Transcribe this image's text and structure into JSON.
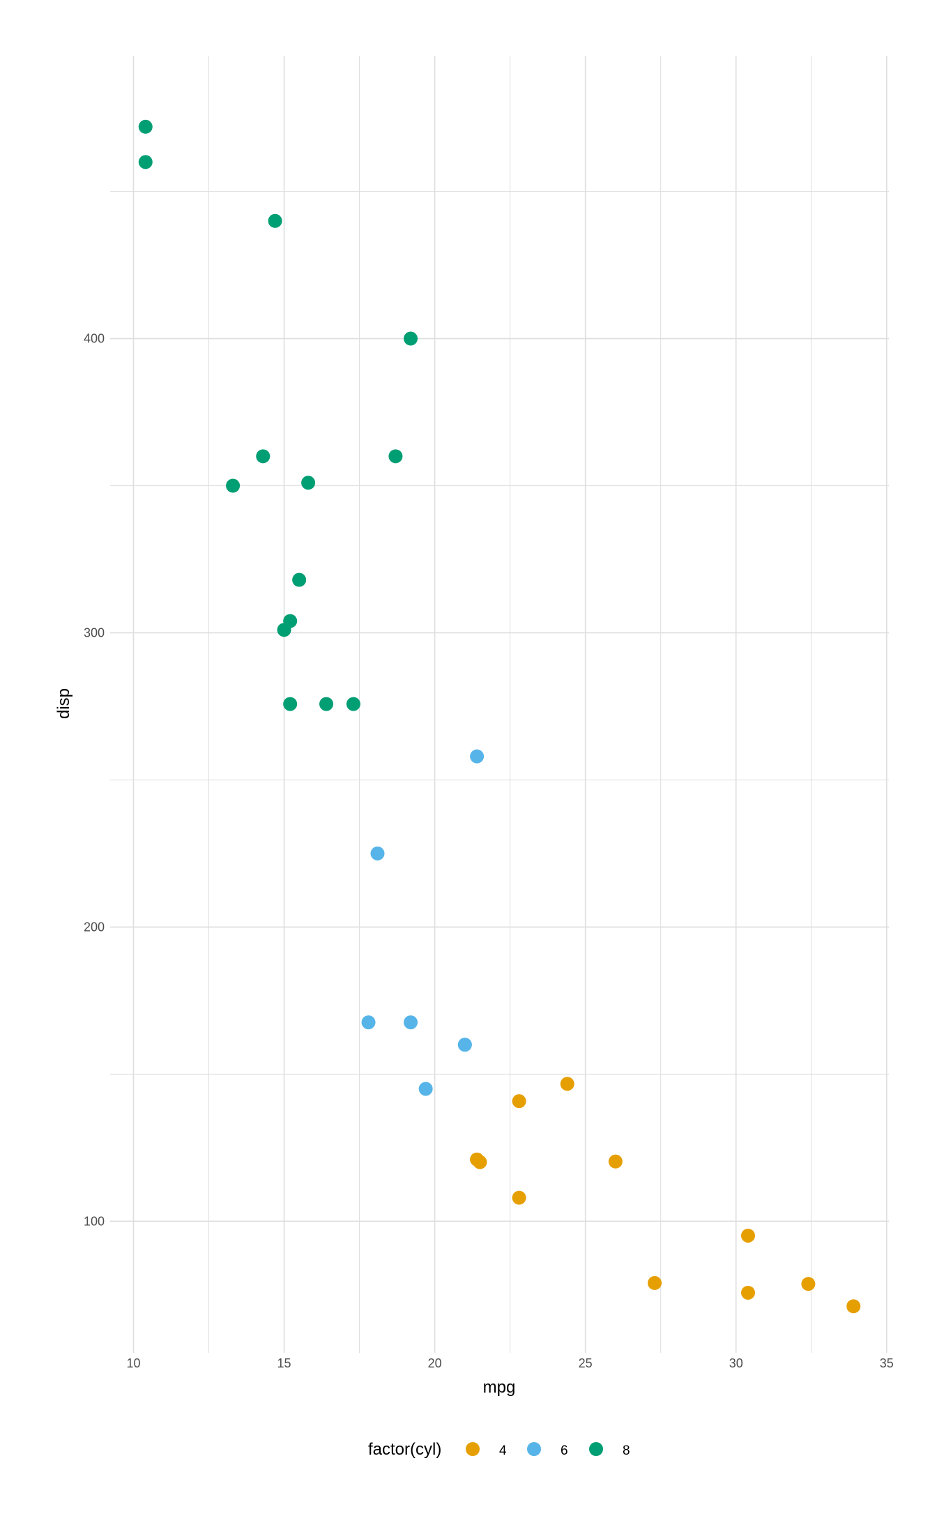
{
  "chart_data": {
    "type": "scatter",
    "xlabel": "mpg",
    "ylabel": "disp",
    "xlim": [
      9.225,
      35.075
    ],
    "ylim": [
      55.28,
      496.12
    ],
    "x_ticks": [
      10,
      15,
      20,
      25,
      30,
      35
    ],
    "x_tick_labels": [
      "10",
      "15",
      "20",
      "25",
      "30",
      "35"
    ],
    "y_ticks": [
      100,
      200,
      300,
      400
    ],
    "y_tick_labels": [
      "100",
      "200",
      "300",
      "400"
    ],
    "grid": true,
    "legend": {
      "title": "factor(cyl)",
      "position": "bottom",
      "entries": [
        "4",
        "6",
        "8"
      ]
    },
    "colors": {
      "4": "#E69F00",
      "6": "#56B4E9",
      "8": "#009E73",
      "grid": "#dedede"
    },
    "series": [
      {
        "name": "4",
        "points": [
          [
            22.8,
            108
          ],
          [
            24.4,
            146.7
          ],
          [
            22.8,
            140.8
          ],
          [
            32.4,
            78.7
          ],
          [
            30.4,
            75.7
          ],
          [
            33.9,
            71.1
          ],
          [
            21.5,
            120.1
          ],
          [
            27.3,
            79
          ],
          [
            26,
            120.3
          ],
          [
            30.4,
            95.1
          ],
          [
            21.4,
            121
          ]
        ]
      },
      {
        "name": "6",
        "points": [
          [
            21,
            160
          ],
          [
            21,
            160
          ],
          [
            21.4,
            258
          ],
          [
            18.1,
            225
          ],
          [
            19.2,
            167.6
          ],
          [
            17.8,
            167.6
          ],
          [
            19.7,
            145
          ]
        ]
      },
      {
        "name": "8",
        "points": [
          [
            18.7,
            360
          ],
          [
            14.3,
            360
          ],
          [
            16.4,
            275.8
          ],
          [
            17.3,
            275.8
          ],
          [
            15.2,
            275.8
          ],
          [
            10.4,
            472
          ],
          [
            10.4,
            460
          ],
          [
            14.7,
            440
          ],
          [
            15.5,
            318
          ],
          [
            15.2,
            304
          ],
          [
            13.3,
            350
          ],
          [
            19.2,
            400
          ],
          [
            15.8,
            351
          ],
          [
            15,
            301
          ]
        ]
      }
    ]
  }
}
